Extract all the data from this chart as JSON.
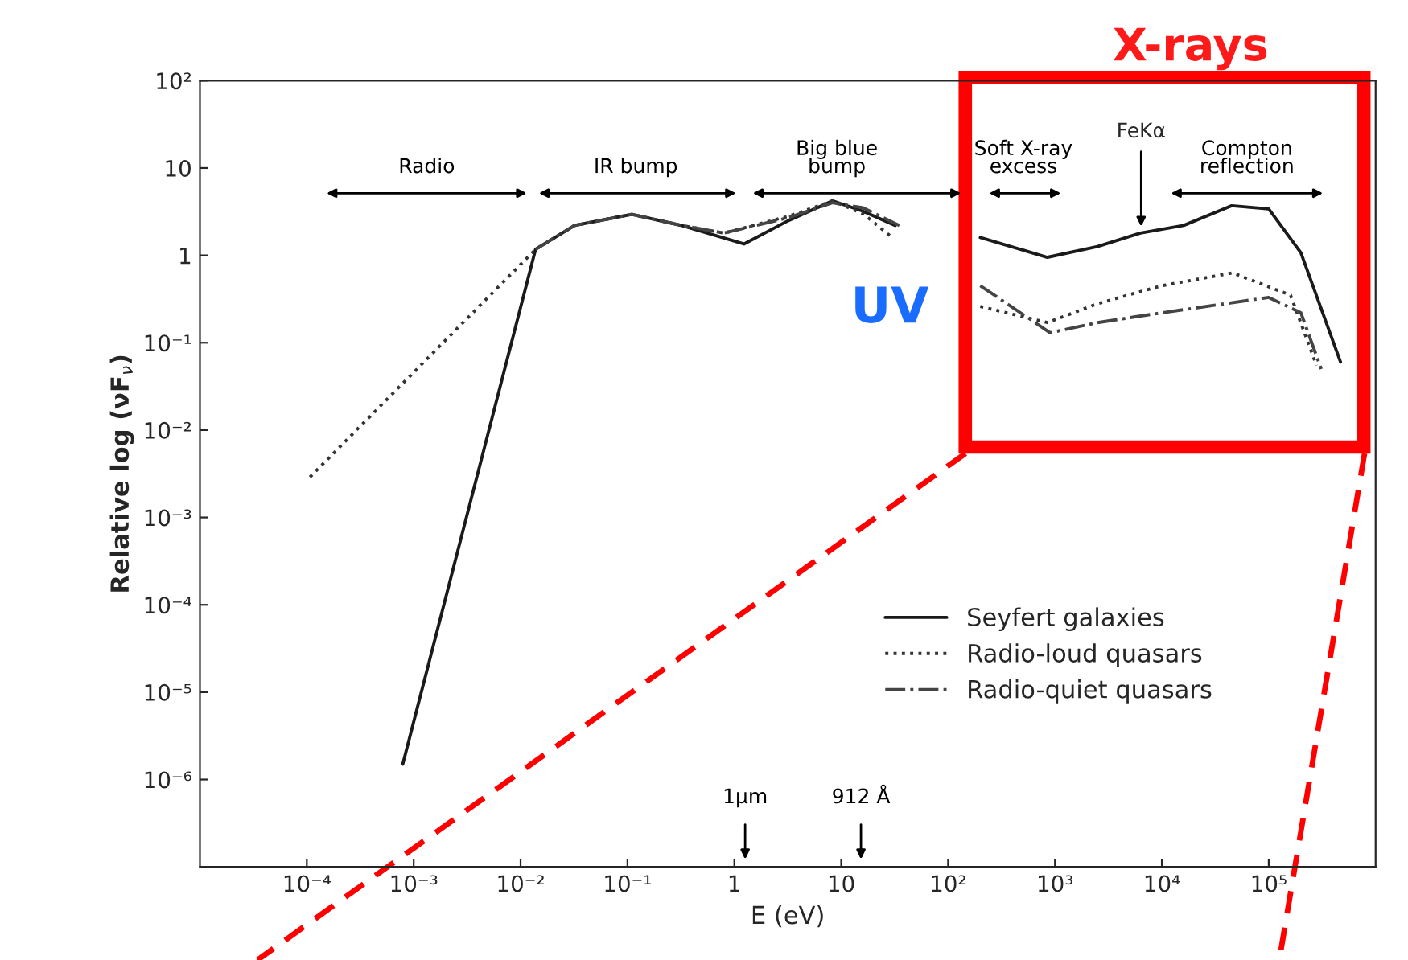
{
  "chart_data": {
    "type": "line",
    "xlabel": "E (eV)",
    "ylabel": "Relative log (νF$_{ν}$)",
    "log": "xy",
    "xlim": [
      1e-05,
      1000000.0
    ],
    "ylim": [
      1e-07,
      100
    ],
    "xticks": [
      {
        "value": 0.0001,
        "label": "10⁻⁴"
      },
      {
        "value": 0.001,
        "label": "10⁻³"
      },
      {
        "value": 0.01,
        "label": "10⁻²"
      },
      {
        "value": 0.1,
        "label": "10⁻¹"
      },
      {
        "value": 1,
        "label": "1"
      },
      {
        "value": 10,
        "label": "10"
      },
      {
        "value": 100,
        "label": "10²"
      },
      {
        "value": 1000,
        "label": "10³"
      },
      {
        "value": 10000,
        "label": "10⁴"
      },
      {
        "value": 100000,
        "label": "10⁵"
      }
    ],
    "yticks": [
      {
        "value": 1e-06,
        "label": "10⁻⁶"
      },
      {
        "value": 1e-05,
        "label": "10⁻⁵"
      },
      {
        "value": 0.0001,
        "label": "10⁻⁴"
      },
      {
        "value": 0.001,
        "label": "10⁻³"
      },
      {
        "value": 0.01,
        "label": "10⁻²"
      },
      {
        "value": 0.1,
        "label": "10⁻¹"
      },
      {
        "value": 1,
        "label": "1"
      },
      {
        "value": 10,
        "label": "10"
      },
      {
        "value": 100,
        "label": "10²"
      }
    ],
    "grid": false,
    "legend": "bottom right",
    "marker": "none",
    "series": [
      {
        "name": "Seyfert galaxies",
        "color": "#1a1a1a",
        "line_style": "solid",
        "x": [
          0.00079,
          0.0138,
          0.032,
          0.11,
          0.32,
          1.23,
          3.2,
          8.3,
          16,
          32,
          60,
          200,
          850,
          2500,
          6300,
          16000,
          45000,
          100000,
          200000,
          470000
        ],
        "values": [
          1.5e-06,
          1.17,
          2.2,
          2.95,
          2.2,
          1.35,
          2.5,
          4.2,
          3.2,
          2.2,
          null,
          1.6,
          0.95,
          1.26,
          1.8,
          2.2,
          3.7,
          3.4,
          1.07,
          0.06
        ]
      },
      {
        "name": "Radio-loud quasars",
        "color": "#333333",
        "line_style": "dotted",
        "x": [
          0.000107,
          0.0138,
          0.032,
          0.11,
          0.32,
          0.8,
          3.2,
          8.3,
          16,
          30,
          60,
          200,
          850,
          2500,
          10000,
          46000,
          160000,
          280000
        ],
        "values": [
          0.0029,
          1.17,
          2.2,
          2.95,
          2.2,
          1.8,
          2.8,
          4.2,
          3.0,
          1.6,
          null,
          0.26,
          0.17,
          0.28,
          0.45,
          0.63,
          0.35,
          0.055
        ]
      },
      {
        "name": "Radio-quiet quasars",
        "color": "#444444",
        "line_style": "dashdot",
        "x": [
          0.0138,
          0.032,
          0.11,
          0.32,
          0.8,
          3.2,
          8.3,
          16,
          35,
          60,
          200,
          900,
          2500,
          10000,
          100000,
          200000,
          310000
        ],
        "values": [
          1.17,
          2.2,
          2.95,
          2.2,
          1.8,
          2.7,
          4.0,
          3.5,
          2.2,
          null,
          0.45,
          0.13,
          0.17,
          0.22,
          0.33,
          0.22,
          0.05
        ]
      }
    ],
    "annotations": [
      {
        "text": "FeKα",
        "x": 6400,
        "y": 1.9
      },
      "Radio",
      "IR bump",
      "Big blue\nbump",
      "Soft X-ray\nexcess",
      "Compton\nreflection",
      "1μm",
      "912 Å",
      "X-rays",
      "UV"
    ]
  }
}
